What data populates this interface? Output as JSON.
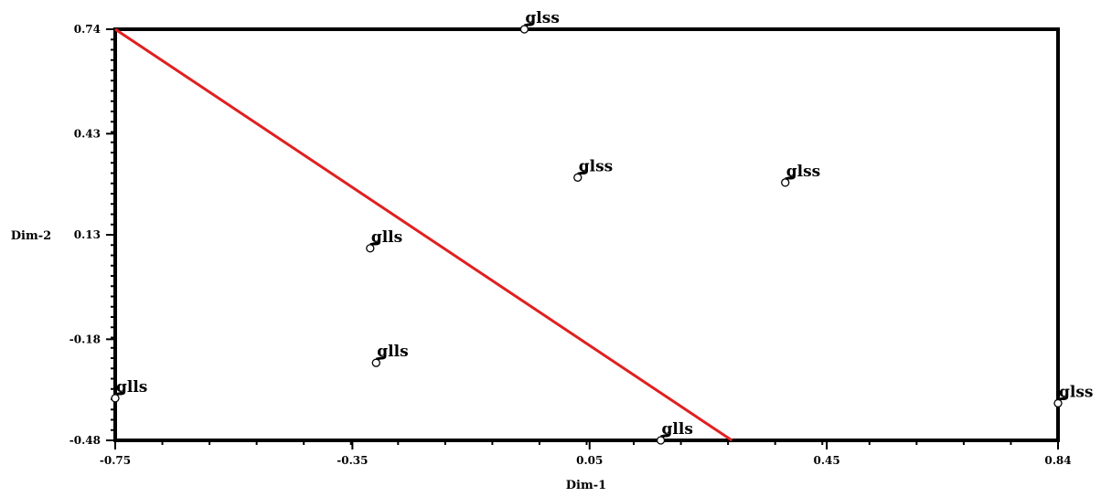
{
  "chart_data": {
    "type": "scatter",
    "title": "",
    "xlabel": "Dim-1",
    "ylabel": "Dim-2",
    "xlim": [
      -0.75,
      0.84
    ],
    "ylim": [
      -0.48,
      0.74
    ],
    "x_ticks": [
      -0.75,
      -0.35,
      0.05,
      0.45,
      0.84
    ],
    "x_tick_labels": [
      "-0.75",
      "-0.35",
      "0.05",
      "0.45",
      "0.84"
    ],
    "y_ticks": [
      -0.48,
      -0.18,
      0.13,
      0.43,
      0.74
    ],
    "y_tick_labels": [
      "-0.48",
      "-0.18",
      "0.13",
      "0.43",
      "0.74"
    ],
    "grid": false,
    "points": [
      {
        "x": -0.06,
        "y": 0.74,
        "label": "glss"
      },
      {
        "x": 0.03,
        "y": 0.3,
        "label": "glss"
      },
      {
        "x": 0.38,
        "y": 0.285,
        "label": "glss"
      },
      {
        "x": 0.84,
        "y": -0.37,
        "label": "glss"
      },
      {
        "x": -0.32,
        "y": 0.09,
        "label": "glls"
      },
      {
        "x": -0.31,
        "y": -0.25,
        "label": "glls"
      },
      {
        "x": -0.75,
        "y": -0.355,
        "label": "glls"
      },
      {
        "x": 0.17,
        "y": -0.48,
        "label": "glls"
      }
    ],
    "line": {
      "x1": -0.75,
      "y1": 0.74,
      "x2": 0.29,
      "y2": -0.48,
      "color": "#e02020"
    }
  }
}
